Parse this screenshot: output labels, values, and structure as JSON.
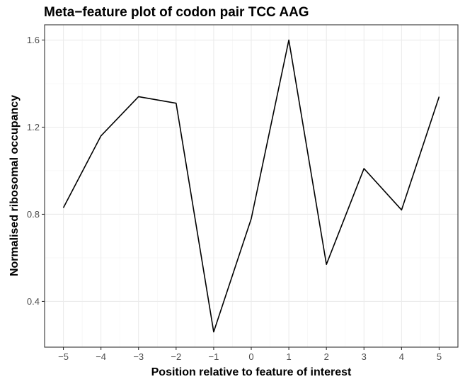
{
  "chart_data": {
    "type": "line",
    "title": "Meta−feature plot of codon pair TCC AAG",
    "xlabel": "Position relative to feature of interest",
    "ylabel": "Normalised ribosomal occupancy",
    "x": [
      -5,
      -4,
      -3,
      -2,
      -1,
      0,
      1,
      2,
      3,
      4,
      5
    ],
    "x_tick_labels": [
      "−5",
      "−4",
      "−3",
      "−2",
      "−1",
      "0",
      "1",
      "2",
      "3",
      "4",
      "5"
    ],
    "y_ticks": [
      0.4,
      0.8,
      1.2,
      1.6
    ],
    "y_tick_labels": [
      "0.4",
      "0.8",
      "1.2",
      "1.6"
    ],
    "series": [
      {
        "values": [
          0.83,
          1.16,
          1.34,
          1.31,
          0.26,
          0.78,
          1.6,
          0.57,
          1.01,
          0.82,
          1.34
        ]
      }
    ],
    "xlim": [
      -5.5,
      5.5
    ],
    "ylim": [
      0.19,
      1.67
    ],
    "grid": true,
    "line_color": "#000000",
    "theme": "bw"
  }
}
